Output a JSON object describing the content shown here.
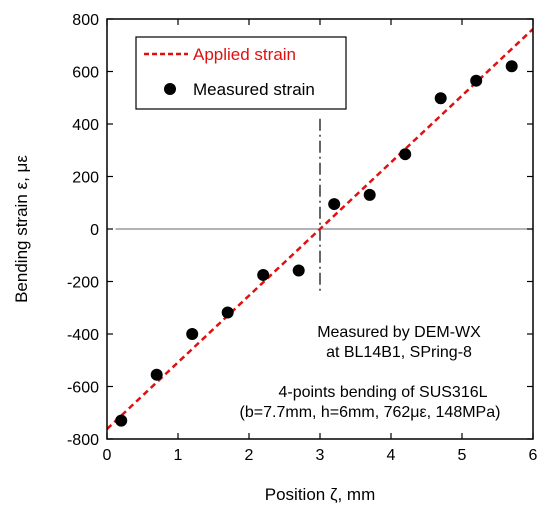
{
  "chart_data": {
    "type": "scatter",
    "xlabel": "Position ζ, mm",
    "ylabel": "Bending strain ε, με",
    "xlim": [
      0,
      6
    ],
    "ylim": [
      -800,
      800
    ],
    "x_ticks": [
      0,
      1,
      2,
      3,
      4,
      5,
      6
    ],
    "y_ticks": [
      -800,
      -600,
      -400,
      -200,
      0,
      200,
      400,
      600,
      800
    ],
    "x_tick_labels": [
      "0",
      "1",
      "2",
      "3",
      "4",
      "5",
      "6"
    ],
    "y_tick_labels": [
      "-800",
      "-600",
      "-400",
      "-200",
      "0",
      "200",
      "400",
      "600",
      "800"
    ],
    "grid": false,
    "legend_position": "top-left",
    "series": [
      {
        "name": "Applied strain",
        "kind": "line",
        "style": "dashed",
        "color": "#e01010",
        "x": [
          0,
          6
        ],
        "y": [
          -762,
          762
        ]
      },
      {
        "name": "Measured strain",
        "kind": "scatter",
        "color": "#000000",
        "x": [
          0.2,
          0.7,
          1.2,
          1.7,
          2.2,
          2.7,
          3.2,
          3.7,
          4.2,
          4.7,
          5.2,
          5.7
        ],
        "y": [
          -730,
          -555,
          -400,
          -318,
          -175,
          -158,
          95,
          130,
          285,
          498,
          565,
          620
        ]
      }
    ],
    "reference_lines": [
      {
        "orientation": "horizontal",
        "value": 0,
        "style": "solid",
        "color": "#888888"
      },
      {
        "orientation": "vertical",
        "value": 3,
        "style": "dashdot",
        "color": "#000000"
      }
    ],
    "annotations": [
      {
        "lines": [
          "Measured by DEM-WX",
          "at BL14B1, SPring-8"
        ]
      },
      {
        "lines": [
          "4-points bending of SUS316L",
          "(b=7.7mm, h=6mm, 762με, 148MPa)"
        ]
      }
    ]
  }
}
